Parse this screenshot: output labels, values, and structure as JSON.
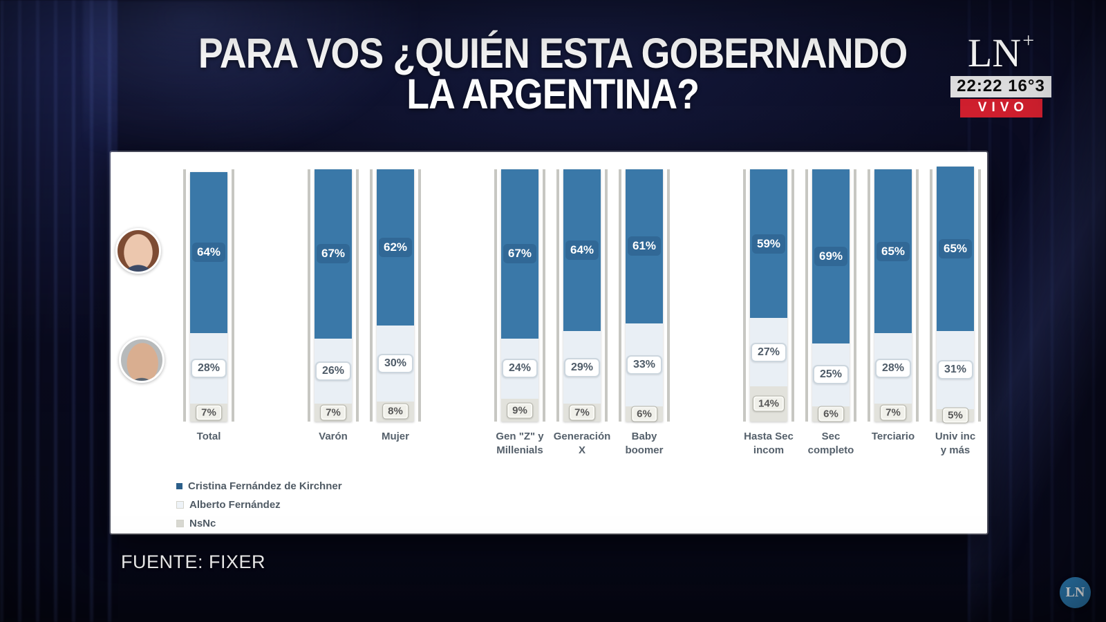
{
  "title": {
    "line1": "PARA VOS ¿QUIÉN ESTA GOBERNANDO",
    "line2": "LA ARGENTINA?"
  },
  "broadcast": {
    "logo_main": "LN",
    "logo_plus": "+",
    "time": "22:22",
    "temperature": "16°3",
    "live_badge": "VIVO",
    "corner_logo": "LN",
    "live_color": "#cf1f2e",
    "corner_logo_color": "#2d7cb3"
  },
  "source": {
    "label": "FUENTE: FIXER"
  },
  "chart_data": {
    "type": "bar",
    "stacked": true,
    "orientation": "vertical",
    "value_suffix": "%",
    "axis_max": 100,
    "grid": false,
    "legend_position": "bottom-left",
    "series_names": [
      "Cristina Fernández de Kirchner",
      "Alberto Fernández",
      "NsNc"
    ],
    "colors": {
      "cristina": "#3a78a8",
      "alberto": "#e9eff5",
      "nsnc": "#e2e2dc"
    },
    "groups": [
      {
        "bars": [
          {
            "label": "Total",
            "values": [
              64,
              28,
              7
            ]
          }
        ]
      },
      {
        "bars": [
          {
            "label": "Varón",
            "values": [
              67,
              26,
              7
            ]
          },
          {
            "label": "Mujer",
            "values": [
              62,
              30,
              8
            ]
          }
        ]
      },
      {
        "bars": [
          {
            "label": "Gen \"Z\" y\nMillenials",
            "values": [
              67,
              24,
              9
            ]
          },
          {
            "label": "Generación\nX",
            "values": [
              64,
              29,
              7
            ]
          },
          {
            "label": "Baby\nboomer",
            "values": [
              61,
              33,
              6
            ]
          }
        ]
      },
      {
        "bars": [
          {
            "label": "Hasta Sec\nincom",
            "values": [
              59,
              27,
              14
            ]
          },
          {
            "label": "Sec\ncompleto",
            "values": [
              69,
              25,
              6
            ]
          },
          {
            "label": "Terciario",
            "values": [
              65,
              28,
              7
            ]
          },
          {
            "label": "Univ inc\ny más",
            "values": [
              65,
              31,
              5
            ]
          }
        ]
      }
    ],
    "legend": [
      {
        "label": "Cristina Fernández de Kirchner",
        "color": "#2c5f8a"
      },
      {
        "label": "Alberto Fernández",
        "color": "#eef3f8"
      },
      {
        "label": "NsNc",
        "color": "#d9d9d2"
      }
    ]
  }
}
